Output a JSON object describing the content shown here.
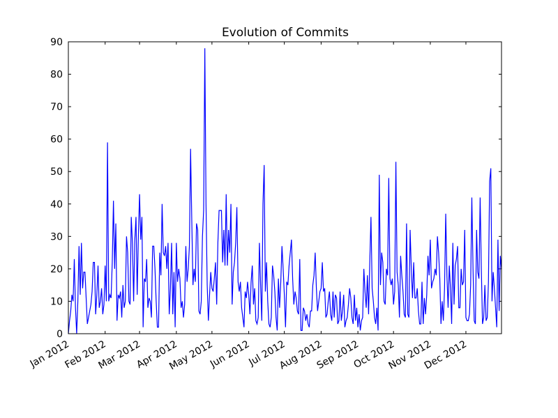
{
  "chart_data": {
    "type": "line",
    "title": "Evolution of Commits",
    "x": [
      0,
      1,
      2,
      3,
      4,
      5,
      6,
      7,
      8,
      9,
      10,
      11,
      12,
      13,
      14,
      15,
      16,
      17,
      18,
      19,
      20,
      21,
      22,
      23,
      24,
      25,
      26,
      27,
      28,
      29,
      30,
      31,
      32,
      33,
      34,
      35,
      36,
      37,
      38,
      39,
      40,
      41,
      42,
      43,
      44,
      45,
      46,
      47,
      48,
      49,
      50,
      51,
      52,
      53,
      54,
      55,
      56,
      57,
      58,
      59,
      60,
      61,
      62,
      63,
      64,
      65,
      66,
      67,
      68,
      69,
      70,
      71,
      72,
      73,
      74,
      75,
      76,
      77,
      78,
      79,
      80,
      81,
      82,
      83,
      84,
      85,
      86,
      87,
      88,
      89,
      90,
      91,
      92,
      93,
      94,
      95,
      96,
      97,
      98,
      99,
      100,
      101,
      102,
      103,
      104,
      105,
      106,
      107,
      108,
      109,
      110,
      111,
      112,
      113,
      114,
      115,
      116,
      117,
      118,
      119,
      120,
      121,
      122,
      123,
      124,
      125,
      126,
      127,
      128,
      129,
      130,
      131,
      132,
      133,
      134,
      135,
      136,
      137,
      138,
      139,
      140,
      141,
      142,
      143,
      144,
      145,
      146,
      147,
      148,
      149,
      150,
      151,
      152,
      153,
      154,
      155,
      156,
      157,
      158,
      159,
      160,
      161,
      162,
      163,
      164,
      165,
      166,
      167,
      168,
      169,
      170,
      171,
      172,
      173,
      174,
      175,
      176,
      177,
      178,
      179,
      180,
      181,
      182,
      183,
      184,
      185,
      186,
      187,
      188,
      189,
      190,
      191,
      192,
      193,
      194,
      195,
      196,
      197,
      198,
      199,
      200,
      201,
      202,
      203,
      204,
      205,
      206,
      207,
      208,
      209,
      210,
      211,
      212,
      213,
      214,
      215,
      216,
      217,
      218,
      219,
      220,
      221,
      222,
      223,
      224,
      225,
      226,
      227,
      228,
      229,
      230,
      231,
      232,
      233,
      234,
      235,
      236,
      237,
      238,
      239,
      240,
      241,
      242,
      243,
      244,
      245,
      246,
      247,
      248,
      249,
      250,
      251,
      252,
      253,
      254,
      255,
      256,
      257,
      258,
      259,
      260,
      261,
      262,
      263,
      264,
      265,
      266,
      267,
      268,
      269,
      270,
      271,
      272,
      273,
      274,
      275,
      276,
      277,
      278,
      279,
      280,
      281,
      282,
      283,
      284,
      285,
      286,
      287,
      288,
      289,
      290,
      291,
      292,
      293,
      294,
      295,
      296,
      297,
      298,
      299,
      300,
      301,
      302,
      303,
      304,
      305,
      306,
      307,
      308,
      309,
      310,
      311,
      312,
      313,
      314,
      315,
      316,
      317,
      318,
      319,
      320,
      321,
      322,
      323,
      324,
      325,
      326,
      327,
      328,
      329,
      330,
      331,
      332,
      333,
      334,
      335,
      336,
      337,
      338,
      339,
      340,
      341,
      342,
      343,
      344,
      345,
      346,
      347,
      348,
      349,
      350,
      351,
      352,
      353,
      354,
      355,
      356,
      357,
      358,
      359,
      360,
      361,
      362,
      363,
      364,
      365
    ],
    "series": [
      {
        "color": "#0000ff",
        "values": [
          0,
          4,
          7,
          12,
          10,
          23,
          8,
          0,
          10,
          27,
          12,
          28,
          14,
          19,
          19,
          11,
          3,
          5,
          7,
          9,
          13,
          22,
          22,
          6,
          12,
          21,
          8,
          10,
          14,
          6,
          9,
          21,
          10,
          59,
          10,
          12,
          11,
          22,
          41,
          20,
          34,
          4,
          12,
          11,
          13,
          5,
          15,
          8,
          10,
          30,
          25,
          10,
          9,
          36,
          28,
          10,
          29,
          36,
          12,
          30,
          43,
          29,
          36,
          2,
          17,
          16,
          23,
          8,
          11,
          10,
          5,
          27,
          27,
          20,
          10,
          2,
          2,
          25,
          18,
          40,
          25,
          24,
          27,
          20,
          28,
          6,
          14,
          28,
          6,
          19,
          2,
          28,
          16,
          20,
          17,
          8,
          10,
          5,
          9,
          27,
          16,
          20,
          27,
          57,
          35,
          15,
          20,
          16,
          34,
          32,
          7,
          6,
          10,
          30,
          38,
          88,
          40,
          15,
          4,
          12,
          19,
          14,
          13,
          17,
          22,
          9,
          28,
          38,
          38,
          38,
          22,
          32,
          21,
          43,
          21,
          32,
          25,
          40,
          9,
          19,
          22,
          28,
          39,
          16,
          13,
          16,
          8,
          5,
          2,
          13,
          11,
          16,
          12,
          6,
          16,
          21,
          9,
          14,
          4,
          3,
          5,
          28,
          15,
          4,
          40,
          52,
          13,
          22,
          10,
          3,
          2,
          5,
          21,
          18,
          13,
          5,
          1,
          17,
          8,
          16,
          27,
          20,
          12,
          2,
          16,
          15,
          21,
          25,
          29,
          17,
          9,
          13,
          11,
          7,
          6,
          23,
          1,
          1,
          8,
          7,
          4,
          6,
          3,
          2,
          7,
          7,
          15,
          18,
          25,
          14,
          7,
          10,
          13,
          14,
          22,
          13,
          14,
          5,
          6,
          10,
          13,
          6,
          4,
          13,
          5,
          12,
          11,
          3,
          4,
          13,
          4,
          7,
          12,
          2,
          4,
          5,
          9,
          14,
          11,
          5,
          3,
          12,
          4,
          8,
          2,
          6,
          1,
          4,
          5,
          20,
          13,
          8,
          18,
          6,
          22,
          36,
          14,
          10,
          5,
          3,
          8,
          1,
          49,
          15,
          25,
          22,
          10,
          9,
          20,
          18,
          48,
          17,
          15,
          17,
          9,
          13,
          53,
          19,
          15,
          5,
          24,
          18,
          13,
          6,
          5,
          34,
          6,
          5,
          32,
          20,
          11,
          22,
          11,
          11,
          14,
          7,
          3,
          3,
          16,
          3,
          11,
          6,
          12,
          24,
          18,
          29,
          14,
          16,
          17,
          20,
          18,
          30,
          25,
          17,
          3,
          10,
          4,
          14,
          37,
          18,
          8,
          21,
          14,
          3,
          28,
          9,
          21,
          23,
          27,
          8,
          8,
          20,
          15,
          16,
          32,
          5,
          4,
          4,
          6,
          15,
          42,
          20,
          4,
          3,
          32,
          19,
          17,
          42,
          20,
          3,
          5,
          15,
          4,
          5,
          16,
          47,
          51,
          10,
          19,
          14,
          8,
          2,
          29,
          7,
          24,
          20
        ]
      }
    ],
    "xlim": [
      0,
      365
    ],
    "xticks": [
      {
        "value": 0,
        "label": "Jan 2012"
      },
      {
        "value": 31,
        "label": "Feb 2012"
      },
      {
        "value": 60,
        "label": "Mar 2012"
      },
      {
        "value": 91,
        "label": "Apr 2012"
      },
      {
        "value": 121,
        "label": "May 2012"
      },
      {
        "value": 152,
        "label": "Jun 2012"
      },
      {
        "value": 182,
        "label": "Jul 2012"
      },
      {
        "value": 213,
        "label": "Aug 2012"
      },
      {
        "value": 244,
        "label": "Sep 2012"
      },
      {
        "value": 274,
        "label": "Oct 2012"
      },
      {
        "value": 305,
        "label": "Nov 2012"
      },
      {
        "value": 335,
        "label": "Dec 2012"
      }
    ],
    "ylim": [
      0,
      90
    ],
    "yticks": [
      0,
      10,
      20,
      30,
      40,
      50,
      60,
      70,
      80,
      90
    ]
  }
}
